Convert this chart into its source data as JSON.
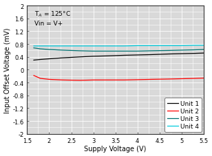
{
  "xlabel": "Supply Voltage (V)",
  "ylabel": "Input Offset Voltage (mV)",
  "annotation_line1": "T",
  "annotation_line2": "Vin = V+",
  "annotation_temp": "125°C",
  "xlim": [
    1.5,
    5.5
  ],
  "ylim": [
    -2,
    2
  ],
  "xticks": [
    1.5,
    2.0,
    2.5,
    3.0,
    3.5,
    4.0,
    4.5,
    5.0,
    5.5
  ],
  "yticks": [
    -2.0,
    -1.6,
    -1.2,
    -0.8,
    -0.4,
    0.0,
    0.4,
    0.8,
    1.2,
    1.6,
    2.0
  ],
  "unit1_x": [
    1.65,
    1.8,
    2.0,
    2.3,
    2.7,
    3.0,
    3.3,
    3.7,
    4.0,
    4.3,
    4.7,
    5.0,
    5.3,
    5.5
  ],
  "unit1_y": [
    0.3,
    0.32,
    0.34,
    0.37,
    0.4,
    0.42,
    0.43,
    0.45,
    0.46,
    0.47,
    0.49,
    0.5,
    0.51,
    0.52
  ],
  "unit2_x": [
    1.65,
    1.8,
    2.0,
    2.3,
    2.7,
    3.0,
    3.3,
    3.7,
    4.0,
    4.3,
    4.7,
    5.0,
    5.3,
    5.5
  ],
  "unit2_y": [
    -0.18,
    -0.27,
    -0.3,
    -0.32,
    -0.33,
    -0.32,
    -0.32,
    -0.32,
    -0.31,
    -0.3,
    -0.29,
    -0.28,
    -0.27,
    -0.26
  ],
  "unit3_x": [
    1.65,
    1.8,
    2.0,
    2.3,
    2.7,
    3.0,
    3.3,
    3.7,
    4.0,
    4.3,
    4.7,
    5.0,
    5.3,
    5.5
  ],
  "unit3_y": [
    0.68,
    0.65,
    0.63,
    0.61,
    0.59,
    0.58,
    0.58,
    0.58,
    0.58,
    0.59,
    0.6,
    0.61,
    0.62,
    0.63
  ],
  "unit4_x": [
    1.65,
    1.8,
    2.0,
    2.3,
    2.7,
    3.0,
    3.3,
    3.7,
    4.0,
    4.3,
    4.7,
    5.0,
    5.3,
    5.5
  ],
  "unit4_y": [
    0.74,
    0.74,
    0.74,
    0.74,
    0.74,
    0.74,
    0.74,
    0.74,
    0.75,
    0.75,
    0.75,
    0.75,
    0.76,
    0.76
  ],
  "unit1_color": "#000000",
  "unit2_color": "#ff0000",
  "unit3_color": "#007070",
  "unit4_color": "#00ccdd",
  "linewidth": 0.9,
  "legend_labels": [
    "Unit 1",
    "Unit 2",
    "Unit 3",
    "Unit 4"
  ],
  "bg_color": "#d9d9d9",
  "grid_color": "#ffffff",
  "font_size": 6.5,
  "label_font_size": 7.0,
  "tick_font_size": 6.0
}
